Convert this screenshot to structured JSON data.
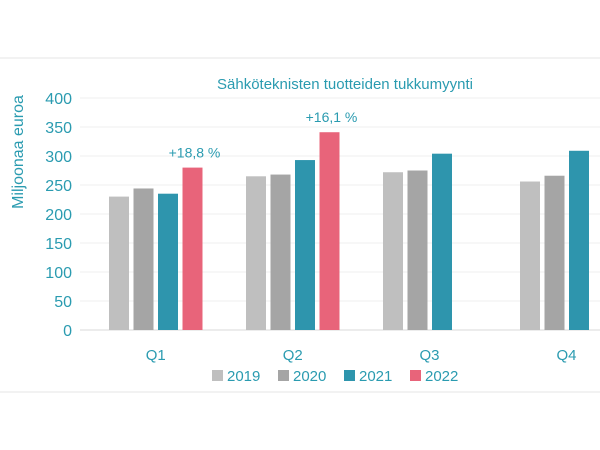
{
  "chart_data": {
    "type": "bar",
    "title": "Sähköteknisten tuotteiden tukkumyynti",
    "ylabel": "Miljoonaa euroa",
    "xlabel": "",
    "ylim": [
      0,
      400
    ],
    "yticks": [
      0,
      50,
      100,
      150,
      200,
      250,
      300,
      350,
      400
    ],
    "grid": true,
    "legend_position": "bottom",
    "categories": [
      "Q1",
      "Q2",
      "Q3",
      "Q4"
    ],
    "series": [
      {
        "name": "2019",
        "color": "#bfbfbf",
        "values": [
          230,
          265,
          272,
          256
        ]
      },
      {
        "name": "2020",
        "color": "#a5a5a5",
        "values": [
          244,
          268,
          275,
          266
        ]
      },
      {
        "name": "2021",
        "color": "#2e95ad",
        "values": [
          235,
          293,
          304,
          309
        ]
      },
      {
        "name": "2022",
        "color": "#e8647a",
        "values": [
          280,
          341,
          null,
          null
        ]
      }
    ],
    "annotations": [
      {
        "text": "+18,8 %",
        "category": "Q1",
        "series": "2022"
      },
      {
        "text": "+16,1 %",
        "category": "Q2",
        "series": "2022"
      }
    ]
  }
}
